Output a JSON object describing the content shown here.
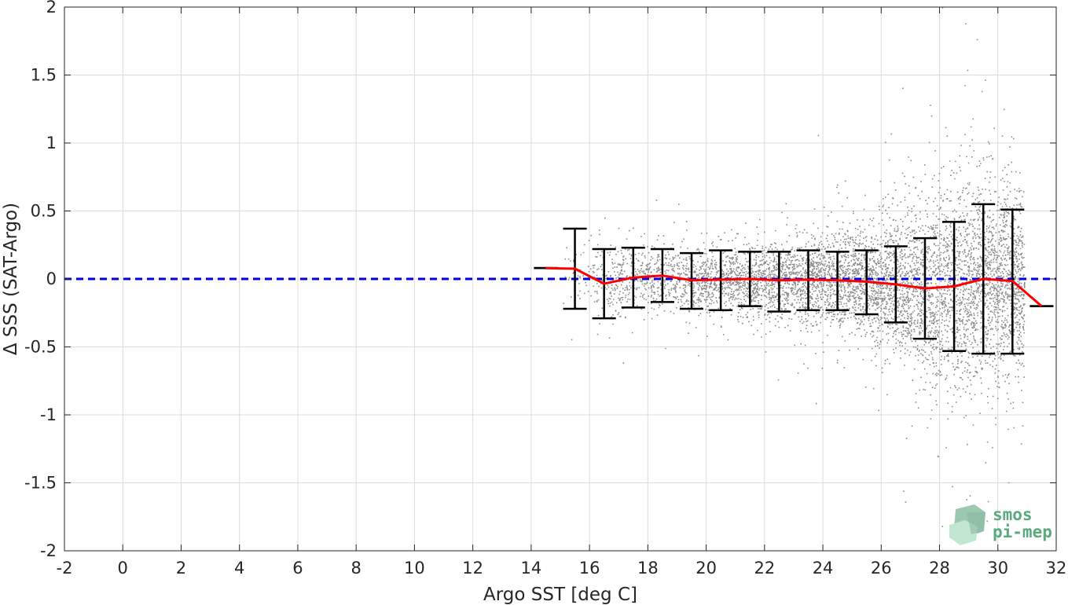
{
  "chart_data": {
    "type": "scatter",
    "title": "",
    "xlabel": "Argo SST [deg C]",
    "ylabel": "Δ SSS (SAT-Argo)",
    "xlim": [
      -2,
      32
    ],
    "ylim": [
      -2,
      2
    ],
    "x_ticks": [
      -2,
      0,
      2,
      4,
      6,
      8,
      10,
      12,
      14,
      16,
      18,
      20,
      22,
      24,
      26,
      28,
      30,
      32
    ],
    "x_tick_labels": [
      "-2",
      "0",
      "2",
      "4",
      "6",
      "8",
      "10",
      "12",
      "14",
      "16",
      "18",
      "20",
      "22",
      "24",
      "26",
      "28",
      "30",
      "32"
    ],
    "y_ticks": [
      -2,
      -1.5,
      -1,
      -0.5,
      0,
      0.5,
      1,
      1.5,
      2
    ],
    "y_tick_labels": [
      "-2",
      "-1.5",
      "-1",
      "-0.5",
      "0",
      "0.5",
      "1",
      "1.5",
      "2"
    ],
    "grid": true,
    "zero_line": {
      "y": 0,
      "color": "#0000e6",
      "style": "dashed"
    },
    "scatter": {
      "color": "#8c8c8c",
      "description": "dense cloud of individual satellite-minus-Argo SSS differences",
      "x_range": [
        14.5,
        32
      ],
      "spread_envelope": [
        {
          "x": 15,
          "sd": 0.1
        },
        {
          "x": 17,
          "sd": 0.12
        },
        {
          "x": 20,
          "sd": 0.12
        },
        {
          "x": 23,
          "sd": 0.14
        },
        {
          "x": 25,
          "sd": 0.17
        },
        {
          "x": 27,
          "sd": 0.28
        },
        {
          "x": 28,
          "sd": 0.36
        },
        {
          "x": 29,
          "sd": 0.38
        },
        {
          "x": 30,
          "sd": 0.34
        },
        {
          "x": 31,
          "sd": 0.3
        }
      ]
    },
    "series": [
      {
        "name": "",
        "type": "line",
        "color": "#ff0000",
        "x": [
          14.5,
          15.5,
          16.5,
          17.5,
          18.5,
          19.5,
          20.5,
          21.5,
          22.5,
          23.5,
          24.5,
          25.5,
          26.5,
          27.5,
          28.5,
          29.5,
          30.5,
          31.5
        ],
        "y": [
          0.08,
          0.075,
          -0.035,
          0.01,
          0.025,
          -0.01,
          -0.005,
          0.0,
          -0.01,
          -0.005,
          -0.01,
          -0.02,
          -0.04,
          -0.07,
          -0.055,
          0.0,
          -0.015,
          -0.2
        ]
      },
      {
        "name": "",
        "type": "errorbar",
        "color": "#000000",
        "x": [
          14.5,
          15.5,
          16.5,
          17.5,
          18.5,
          19.5,
          20.5,
          21.5,
          22.5,
          23.5,
          24.5,
          25.5,
          26.5,
          27.5,
          28.5,
          29.5,
          30.5,
          31.5
        ],
        "lower": [
          0.08,
          -0.22,
          -0.29,
          -0.21,
          -0.17,
          -0.22,
          -0.23,
          -0.2,
          -0.24,
          -0.23,
          -0.23,
          -0.26,
          -0.32,
          -0.44,
          -0.53,
          -0.55,
          -0.55,
          -0.2
        ],
        "upper": [
          0.08,
          0.37,
          0.22,
          0.23,
          0.22,
          0.19,
          0.21,
          0.2,
          0.2,
          0.21,
          0.2,
          0.21,
          0.24,
          0.3,
          0.42,
          0.55,
          0.51,
          -0.2
        ]
      }
    ]
  },
  "logo": {
    "line1": "smos",
    "line2": "pi-mep",
    "color": "#5aaa7d"
  }
}
